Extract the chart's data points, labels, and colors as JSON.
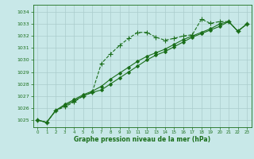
{
  "title": "Graphe pression niveau de la mer (hPa)",
  "bg_color": "#c8e8e8",
  "grid_color": "#aacccc",
  "line_color": "#1a6e1a",
  "xlim": [
    -0.5,
    23.5
  ],
  "ylim": [
    1024.4,
    1034.6
  ],
  "yticks": [
    1025,
    1026,
    1027,
    1028,
    1029,
    1030,
    1031,
    1032,
    1033,
    1034
  ],
  "xticks": [
    0,
    1,
    2,
    3,
    4,
    5,
    6,
    7,
    8,
    9,
    10,
    11,
    12,
    13,
    14,
    15,
    16,
    17,
    18,
    19,
    20,
    21,
    22,
    23
  ],
  "series": [
    {
      "x": [
        0,
        1,
        2,
        3,
        4,
        5,
        6,
        7,
        8,
        9,
        10,
        11,
        12,
        13,
        14,
        15,
        16,
        17,
        18,
        19,
        20,
        21,
        22,
        23
      ],
      "y": [
        1025.0,
        1024.8,
        1025.8,
        1026.1,
        1026.5,
        1027.0,
        1027.3,
        1029.7,
        1030.5,
        1031.2,
        1031.8,
        1032.3,
        1032.3,
        1031.9,
        1031.65,
        1031.8,
        1032.0,
        1032.1,
        1033.4,
        1033.05,
        1033.2,
        1033.2,
        1032.4,
        1033.0
      ],
      "marker": "+",
      "linestyle": "--",
      "linewidth": 0.8,
      "markersize": 5
    },
    {
      "x": [
        0,
        1,
        2,
        3,
        4,
        5,
        6,
        7,
        8,
        9,
        10,
        11,
        12,
        13,
        14,
        15,
        16,
        17,
        18,
        19,
        20,
        21,
        22,
        23
      ],
      "y": [
        1025.0,
        1024.8,
        1025.8,
        1026.2,
        1026.6,
        1027.0,
        1027.3,
        1027.5,
        1028.0,
        1028.5,
        1029.0,
        1029.5,
        1030.0,
        1030.4,
        1030.7,
        1031.1,
        1031.5,
        1031.9,
        1032.2,
        1032.5,
        1032.8,
        1033.2,
        1032.4,
        1033.0
      ],
      "marker": "D",
      "linestyle": "-",
      "linewidth": 0.8,
      "markersize": 2
    },
    {
      "x": [
        0,
        1,
        2,
        3,
        4,
        5,
        6,
        7,
        8,
        9,
        10,
        11,
        12,
        13,
        14,
        15,
        16,
        17,
        18,
        19,
        20,
        21,
        22,
        23
      ],
      "y": [
        1025.0,
        1024.8,
        1025.8,
        1026.3,
        1026.7,
        1027.1,
        1027.4,
        1027.8,
        1028.4,
        1028.9,
        1029.4,
        1029.9,
        1030.3,
        1030.6,
        1030.9,
        1031.3,
        1031.7,
        1032.0,
        1032.3,
        1032.6,
        1033.0,
        1033.2,
        1032.4,
        1033.0
      ],
      "marker": "D",
      "linestyle": "-",
      "linewidth": 0.8,
      "markersize": 2
    }
  ]
}
